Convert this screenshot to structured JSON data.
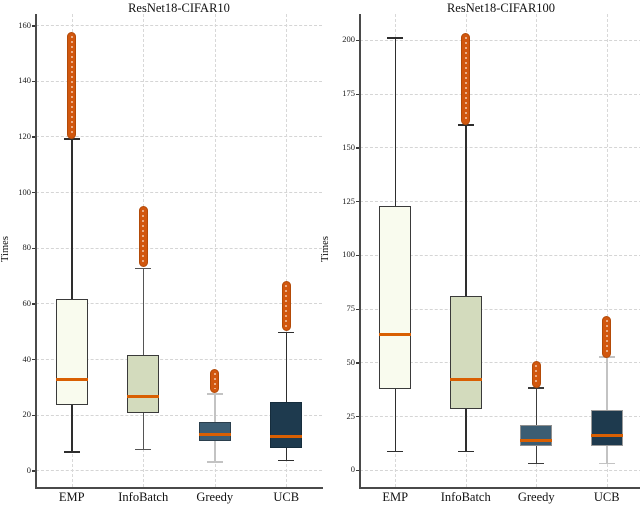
{
  "figure_background": "#ffffff",
  "chart_data": [
    {
      "type": "box",
      "title": "ResNet18-CIFAR10",
      "ylabel": "Times",
      "categories": [
        "EMP",
        "InfoBatch",
        "Greedy",
        "UCB"
      ],
      "yticks": [
        0,
        20,
        40,
        60,
        80,
        100,
        120,
        140,
        160
      ],
      "ylim": [
        -6,
        164
      ],
      "grid": {
        "style": "dashed",
        "x": true,
        "y": true,
        "color": "#d5d5d5"
      },
      "legend": "none",
      "colors": {
        "median": "#d95f02",
        "outlier_fill": "#d1570e",
        "outlier_edge": "#b34a08"
      },
      "series": [
        {
          "name": "EMP",
          "whislo": 6.5,
          "q1": 23.5,
          "med": 32.5,
          "q3": 61.5,
          "whishi": 119,
          "outlier_low": 120,
          "outlier_high": 156.5,
          "fill": "#f9fbee",
          "edge": "#3a3a3a",
          "whisker": "#2e2e2e"
        },
        {
          "name": "InfoBatch",
          "whislo": 7.5,
          "q1": 20.5,
          "med": 26.5,
          "q3": 41.5,
          "whishi": 72.5,
          "outlier_low": 74,
          "outlier_high": 94,
          "fill": "#d3dbbd",
          "edge": "#3a3a3a",
          "whisker": "#555555"
        },
        {
          "name": "Greedy",
          "whislo": 3,
          "q1": 10.5,
          "med": 13,
          "q3": 17.5,
          "whishi": 27.5,
          "outlier_low": 29,
          "outlier_high": 35.5,
          "fill": "#3c5d73",
          "edge": "#2b3f4d",
          "whisker": "#c3c3c3"
        },
        {
          "name": "UCB",
          "whislo": 3.5,
          "q1": 8,
          "med": 12,
          "q3": 24.5,
          "whishi": 49.5,
          "outlier_low": 51,
          "outlier_high": 67,
          "fill": "#1e3a4e",
          "edge": "#162d3d",
          "whisker": "#2e2e2e"
        }
      ]
    },
    {
      "type": "box",
      "title": "ResNet18-CIFAR100",
      "ylabel": "Times",
      "categories": [
        "EMP",
        "InfoBatch",
        "Greedy",
        "UCB"
      ],
      "yticks": [
        0,
        25,
        50,
        75,
        100,
        125,
        150,
        175,
        200
      ],
      "ylim": [
        -8,
        212
      ],
      "grid": {
        "style": "dashed",
        "x": true,
        "y": true,
        "color": "#d5d5d5"
      },
      "legend": "none",
      "colors": {
        "median": "#d95f02",
        "outlier_fill": "#d1570e",
        "outlier_edge": "#b34a08"
      },
      "series": [
        {
          "name": "EMP",
          "whislo": 8.5,
          "q1": 37.5,
          "med": 63,
          "q3": 122.5,
          "whishi": 201,
          "outlier_low": null,
          "outlier_high": null,
          "fill": "#f9fbee",
          "edge": "#3a3a3a",
          "whisker": "#2e2e2e"
        },
        {
          "name": "InfoBatch",
          "whislo": 8.5,
          "q1": 28.5,
          "med": 42,
          "q3": 81,
          "whishi": 160.5,
          "outlier_low": 162,
          "outlier_high": 202,
          "fill": "#d3dbbd",
          "edge": "#3a3a3a",
          "whisker": "#2e2e2e"
        },
        {
          "name": "Greedy",
          "whislo": 3,
          "q1": 11,
          "med": 13.5,
          "q3": 21,
          "whishi": 38,
          "outlier_low": 39.5,
          "outlier_high": 49,
          "fill": "#3c5d73",
          "edge": "#8f8f8f",
          "whisker": "#3c3c3c"
        },
        {
          "name": "UCB",
          "whislo": 3,
          "q1": 11,
          "med": 16,
          "q3": 28,
          "whishi": 52.5,
          "outlier_low": 53.5,
          "outlier_high": 70,
          "fill": "#1e3a4e",
          "edge": "#9a9a9a",
          "whisker": "#c3c3c3"
        }
      ]
    }
  ]
}
